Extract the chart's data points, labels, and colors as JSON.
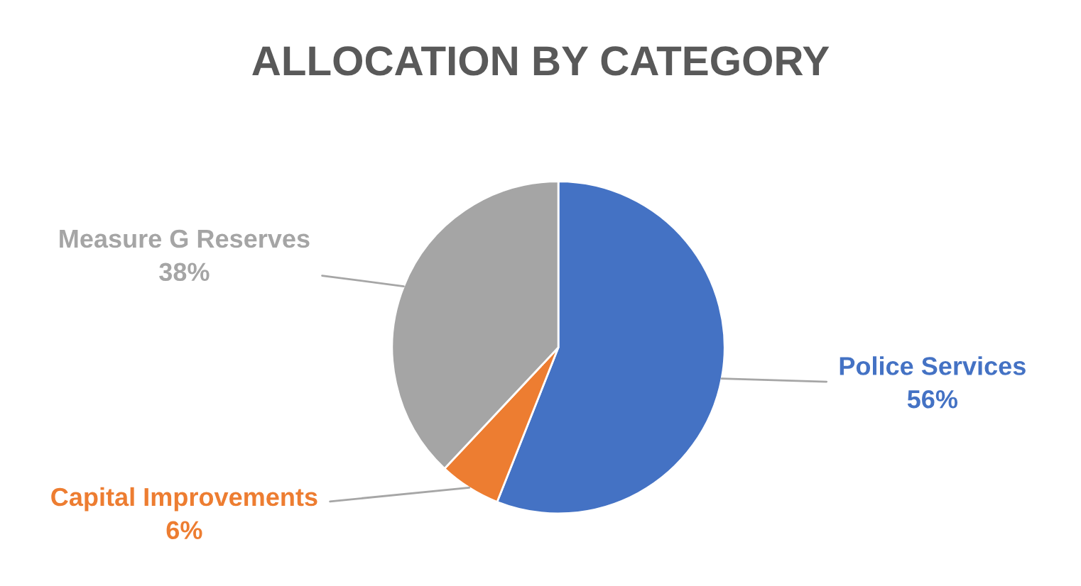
{
  "chart_data": {
    "type": "pie",
    "title": "ALLOCATION BY CATEGORY",
    "categories": [
      "Police Services",
      "Capital Improvements",
      "Measure G Reserves"
    ],
    "values": [
      56,
      6,
      38
    ],
    "value_labels": [
      "56%",
      "6%",
      "38%"
    ],
    "colors": [
      "#4472c4",
      "#ed7d31",
      "#a5a5a5"
    ],
    "legend": false
  }
}
